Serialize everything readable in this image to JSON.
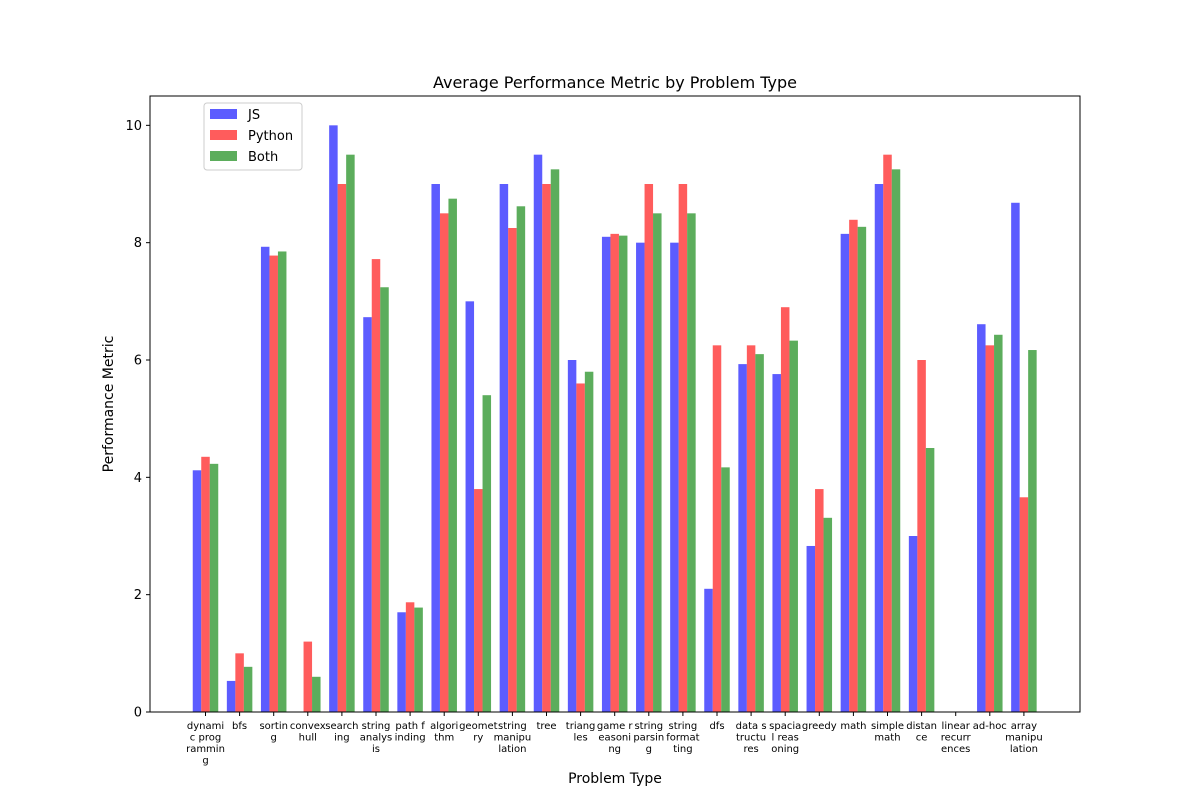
{
  "chart_data": {
    "type": "bar",
    "title": "Average Performance Metric by Problem Type",
    "xlabel": "Problem Type",
    "ylabel": "Performance Metric",
    "ylim": [
      0,
      10.5
    ],
    "yticks": [
      "0",
      "2",
      "4",
      "6",
      "8",
      "10"
    ],
    "grid": false,
    "legend_position": "top-left",
    "categories": [
      [
        "dynami",
        "c prog",
        "rammin",
        "g"
      ],
      [
        "bfs"
      ],
      [
        "sortin",
        "g"
      ],
      [
        "convex",
        "hull"
      ],
      [
        "search",
        "ing"
      ],
      [
        "string",
        "analys",
        "is"
      ],
      [
        "path f",
        "inding"
      ],
      [
        "algori",
        "thm"
      ],
      [
        "geomet",
        "ry"
      ],
      [
        "string",
        "manipu",
        "lation"
      ],
      [
        "tree"
      ],
      [
        "triang",
        "les"
      ],
      [
        "game r",
        "easoni",
        "ng"
      ],
      [
        "string",
        "parsin",
        "g"
      ],
      [
        "string",
        "format",
        "ting"
      ],
      [
        "dfs"
      ],
      [
        "data s",
        "tructu",
        "res"
      ],
      [
        "spacia",
        "l reas",
        "oning"
      ],
      [
        "greedy"
      ],
      [
        "math"
      ],
      [
        "simple",
        "math"
      ],
      [
        "distan",
        "ce"
      ],
      [
        "linear",
        "recurr",
        "ences"
      ],
      [
        "ad-hoc"
      ],
      [
        "array",
        "manipu",
        "lation"
      ]
    ],
    "series": [
      {
        "name": "JS",
        "color": "#3333ff",
        "values": [
          4.12,
          0.53,
          7.93,
          0,
          10.0,
          6.73,
          1.7,
          9.0,
          7.0,
          9.0,
          9.5,
          6.0,
          8.1,
          8.0,
          8.0,
          2.1,
          5.93,
          5.76,
          2.83,
          8.15,
          9.0,
          3.0,
          0,
          6.61,
          8.68
        ]
      },
      {
        "name": "Python",
        "color": "#ff3333",
        "values": [
          4.35,
          1.0,
          7.78,
          1.2,
          9.0,
          7.72,
          1.87,
          8.5,
          3.8,
          8.25,
          9.0,
          5.6,
          8.15,
          9.0,
          9.0,
          6.25,
          6.25,
          6.9,
          3.8,
          8.39,
          9.5,
          6.0,
          0,
          6.25,
          3.66
        ]
      },
      {
        "name": "Both",
        "color": "#339933",
        "values": [
          4.23,
          0.77,
          7.85,
          0.6,
          9.5,
          7.24,
          1.78,
          8.75,
          5.4,
          8.62,
          9.25,
          5.8,
          8.12,
          8.5,
          8.5,
          4.17,
          6.1,
          6.33,
          3.31,
          8.27,
          9.25,
          4.5,
          0,
          6.43,
          6.17
        ]
      }
    ]
  }
}
